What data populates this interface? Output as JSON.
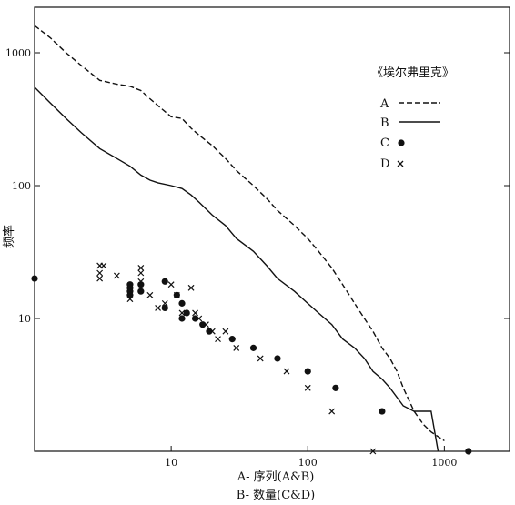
{
  "chart_data": {
    "type": "line",
    "x_scale": "log",
    "y_scale": "log",
    "xlim": [
      1,
      3000
    ],
    "ylim": [
      1,
      2200
    ],
    "x_ticks": [
      {
        "value": 10,
        "label": "10"
      },
      {
        "value": 100,
        "label": "100"
      },
      {
        "value": 1000,
        "label": "1000"
      }
    ],
    "y_ticks": [
      {
        "value": 10,
        "label": "10"
      },
      {
        "value": 100,
        "label": "100"
      },
      {
        "value": 1000,
        "label": "1000"
      }
    ],
    "xlabel_line1": "A- 序列(A&B)",
    "xlabel_line2": "B- 数量(C&D)",
    "ylabel": "频率",
    "grid": false,
    "legend": {
      "title": "《埃尔弗里克》",
      "placement": "top-right",
      "entries": [
        {
          "key": "A",
          "marker": "dashed-line"
        },
        {
          "key": "B",
          "marker": "solid-line"
        },
        {
          "key": "C",
          "marker": "dot"
        },
        {
          "key": "D",
          "marker": "cross"
        }
      ]
    },
    "series": [
      {
        "key": "A",
        "style": "dashed",
        "points": [
          [
            1,
            1600
          ],
          [
            1.3,
            1300
          ],
          [
            1.7,
            1000
          ],
          [
            2.2,
            800
          ],
          [
            3,
            620
          ],
          [
            4,
            580
          ],
          [
            5,
            560
          ],
          [
            6,
            520
          ],
          [
            7,
            450
          ],
          [
            8,
            400
          ],
          [
            10,
            330
          ],
          [
            12,
            320
          ],
          [
            14,
            270
          ],
          [
            16,
            240
          ],
          [
            20,
            200
          ],
          [
            25,
            160
          ],
          [
            30,
            130
          ],
          [
            40,
            100
          ],
          [
            50,
            80
          ],
          [
            60,
            65
          ],
          [
            80,
            50
          ],
          [
            100,
            40
          ],
          [
            120,
            32
          ],
          [
            150,
            24
          ],
          [
            180,
            18
          ],
          [
            220,
            13
          ],
          [
            260,
            10
          ],
          [
            300,
            8
          ],
          [
            350,
            6
          ],
          [
            400,
            5
          ],
          [
            450,
            4
          ],
          [
            500,
            3
          ],
          [
            600,
            2
          ],
          [
            700,
            1.6
          ],
          [
            800,
            1.4
          ],
          [
            1000,
            1.2
          ]
        ]
      },
      {
        "key": "B",
        "style": "solid",
        "points": [
          [
            1,
            550
          ],
          [
            1.3,
            420
          ],
          [
            1.7,
            320
          ],
          [
            2.2,
            250
          ],
          [
            3,
            190
          ],
          [
            4,
            160
          ],
          [
            5,
            140
          ],
          [
            6,
            120
          ],
          [
            7,
            110
          ],
          [
            8,
            105
          ],
          [
            10,
            100
          ],
          [
            12,
            95
          ],
          [
            14,
            85
          ],
          [
            16,
            75
          ],
          [
            20,
            60
          ],
          [
            25,
            50
          ],
          [
            30,
            40
          ],
          [
            40,
            32
          ],
          [
            50,
            25
          ],
          [
            60,
            20
          ],
          [
            80,
            16
          ],
          [
            100,
            13
          ],
          [
            120,
            11
          ],
          [
            150,
            9
          ],
          [
            180,
            7
          ],
          [
            220,
            6
          ],
          [
            260,
            5
          ],
          [
            300,
            4
          ],
          [
            350,
            3.5
          ],
          [
            400,
            3
          ],
          [
            500,
            2.2
          ],
          [
            600,
            2
          ],
          [
            800,
            2
          ],
          [
            900,
            1
          ]
        ]
      },
      {
        "key": "C",
        "style": "dot",
        "points": [
          [
            1,
            20
          ],
          [
            5,
            18
          ],
          [
            5,
            17
          ],
          [
            5,
            16
          ],
          [
            5,
            15
          ],
          [
            6,
            18
          ],
          [
            6,
            16
          ],
          [
            9,
            19
          ],
          [
            9,
            12
          ],
          [
            11,
            15
          ],
          [
            12,
            13
          ],
          [
            12,
            10
          ],
          [
            13,
            11
          ],
          [
            15,
            10
          ],
          [
            17,
            9
          ],
          [
            19,
            8
          ],
          [
            28,
            7
          ],
          [
            40,
            6
          ],
          [
            60,
            5
          ],
          [
            100,
            4
          ],
          [
            160,
            3
          ],
          [
            350,
            2
          ],
          [
            1500,
            1
          ]
        ]
      },
      {
        "key": "D",
        "style": "cross",
        "points": [
          [
            3,
            25
          ],
          [
            3,
            22
          ],
          [
            3,
            20
          ],
          [
            3.2,
            25
          ],
          [
            4,
            21
          ],
          [
            5,
            14
          ],
          [
            6,
            24
          ],
          [
            6,
            22
          ],
          [
            6,
            19
          ],
          [
            7,
            15
          ],
          [
            8,
            12
          ],
          [
            9,
            13
          ],
          [
            10,
            18
          ],
          [
            11,
            15
          ],
          [
            12,
            11
          ],
          [
            14,
            17
          ],
          [
            15,
            11
          ],
          [
            16,
            10
          ],
          [
            18,
            9
          ],
          [
            20,
            8
          ],
          [
            22,
            7
          ],
          [
            25,
            8
          ],
          [
            30,
            6
          ],
          [
            45,
            5
          ],
          [
            70,
            4
          ],
          [
            100,
            3
          ],
          [
            150,
            2
          ],
          [
            300,
            1
          ]
        ]
      }
    ]
  }
}
